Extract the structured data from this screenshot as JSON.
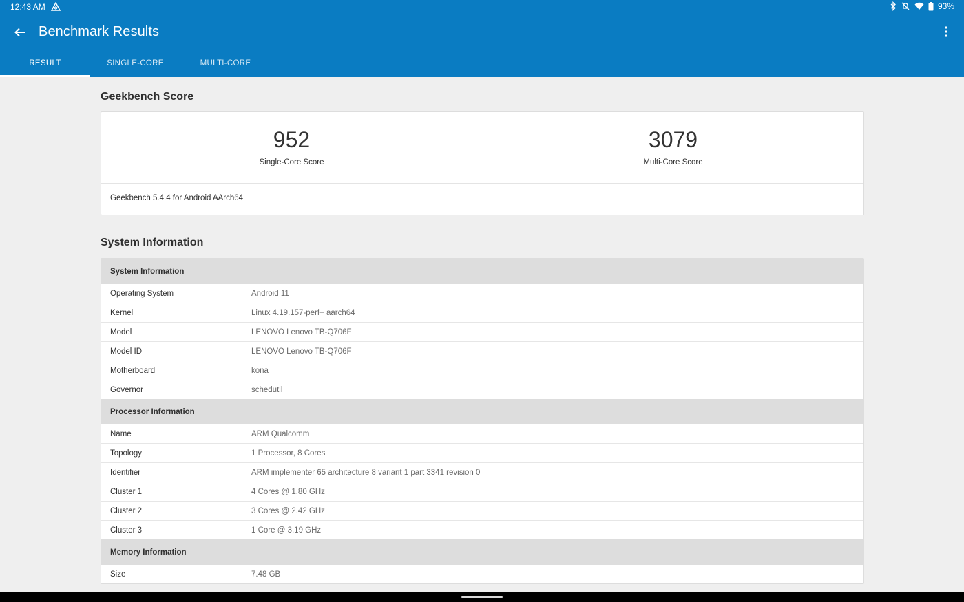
{
  "status_bar": {
    "time": "12:43 AM",
    "battery": "93%",
    "icons": [
      "app-notification-icon",
      "bluetooth-icon",
      "mute-icon",
      "wifi-icon",
      "battery-icon"
    ]
  },
  "toolbar": {
    "title": "Benchmark Results",
    "back_icon": "arrow-back-icon",
    "overflow_icon": "more-vert-icon"
  },
  "tabs": [
    {
      "label": "RESULT",
      "active": true
    },
    {
      "label": "SINGLE-CORE",
      "active": false
    },
    {
      "label": "MULTI-CORE",
      "active": false
    }
  ],
  "score_section": {
    "title": "Geekbench Score",
    "single_core": {
      "value": "952",
      "label": "Single-Core Score"
    },
    "multi_core": {
      "value": "3079",
      "label": "Multi-Core Score"
    },
    "version": "Geekbench 5.4.4 for Android AArch64"
  },
  "system_section": {
    "title": "System Information",
    "groups": [
      {
        "header": "System Information",
        "rows": [
          {
            "key": "Operating System",
            "value": "Android 11"
          },
          {
            "key": "Kernel",
            "value": "Linux 4.19.157-perf+ aarch64"
          },
          {
            "key": "Model",
            "value": "LENOVO Lenovo TB-Q706F"
          },
          {
            "key": "Model ID",
            "value": "LENOVO Lenovo TB-Q706F"
          },
          {
            "key": "Motherboard",
            "value": "kona"
          },
          {
            "key": "Governor",
            "value": "schedutil"
          }
        ]
      },
      {
        "header": "Processor Information",
        "rows": [
          {
            "key": "Name",
            "value": "ARM Qualcomm"
          },
          {
            "key": "Topology",
            "value": "1 Processor, 8 Cores"
          },
          {
            "key": "Identifier",
            "value": "ARM implementer 65 architecture 8 variant 1 part 3341 revision 0"
          },
          {
            "key": "Cluster 1",
            "value": "4 Cores @ 1.80 GHz"
          },
          {
            "key": "Cluster 2",
            "value": "3 Cores @ 2.42 GHz"
          },
          {
            "key": "Cluster 3",
            "value": "1 Core @ 3.19 GHz"
          }
        ]
      },
      {
        "header": "Memory Information",
        "rows": [
          {
            "key": "Size",
            "value": "7.48 GB"
          }
        ]
      }
    ]
  },
  "colors": {
    "app_bar": "#0a7cc2",
    "background": "#efefef",
    "card": "#ffffff",
    "group_header": "#dddddd"
  }
}
